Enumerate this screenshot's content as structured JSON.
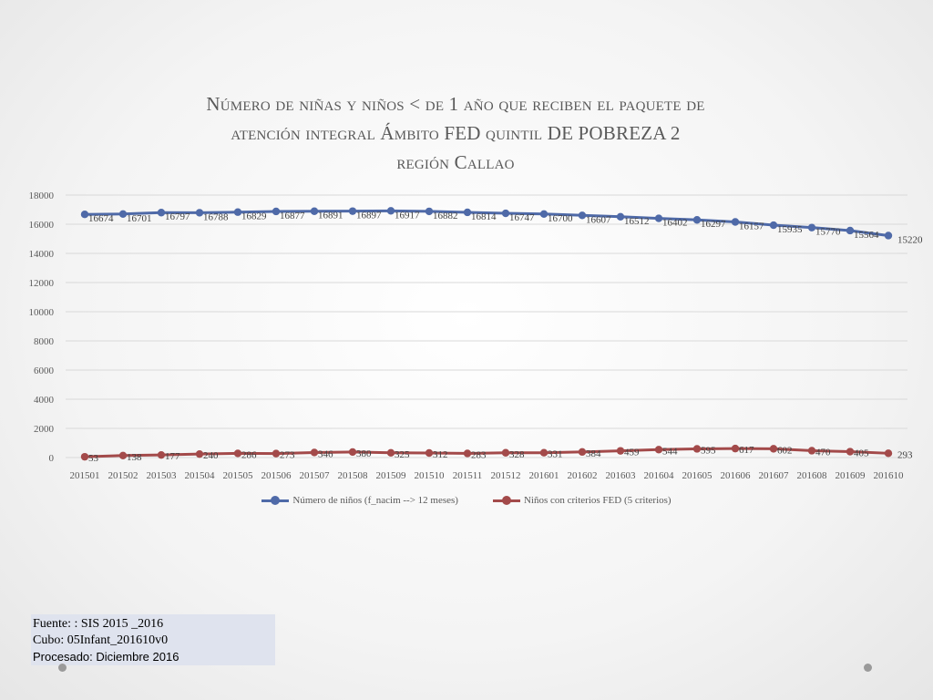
{
  "chart_data": {
    "type": "line",
    "title_lines": [
      "Número de niñas y niños < de 1 año que reciben el paquete de",
      "atención integral Ámbito FED quintil DE POBREZA 2",
      "región Callao"
    ],
    "categories": [
      "201501",
      "201502",
      "201503",
      "201504",
      "201505",
      "201506",
      "201507",
      "201508",
      "201509",
      "201510",
      "201511",
      "201512",
      "201601",
      "201602",
      "201603",
      "201604",
      "201605",
      "201606",
      "201607",
      "201608",
      "201609",
      "201610"
    ],
    "ylim": [
      0,
      18000
    ],
    "yticks": [
      0,
      2000,
      4000,
      6000,
      8000,
      10000,
      12000,
      14000,
      16000,
      18000
    ],
    "grid": true,
    "legend_position": "bottom",
    "series": [
      {
        "name": "Número de niños (f_nacim --> 12 meses)",
        "color": "#4f6aa8",
        "values": [
          16674,
          16701,
          16797,
          16788,
          16829,
          16877,
          16891,
          16897,
          16917,
          16882,
          16814,
          16747,
          16700,
          16607,
          16512,
          16402,
          16297,
          16157,
          15935,
          15770,
          15564,
          15220
        ]
      },
      {
        "name": "Niños con criterios FED (5 criterios)",
        "color": "#a34a4a",
        "values": [
          53,
          138,
          177,
          240,
          286,
          273,
          346,
          380,
          325,
          312,
          283,
          328,
          331,
          384,
          459,
          544,
          595,
          617,
          602,
          470,
          405,
          293
        ]
      }
    ]
  },
  "source": {
    "line1": "Fuente: : SIS 2015 _2016",
    "line2": "Cubo: 05Infant_201610v0",
    "line3": "Procesado: Diciembre 2016"
  }
}
